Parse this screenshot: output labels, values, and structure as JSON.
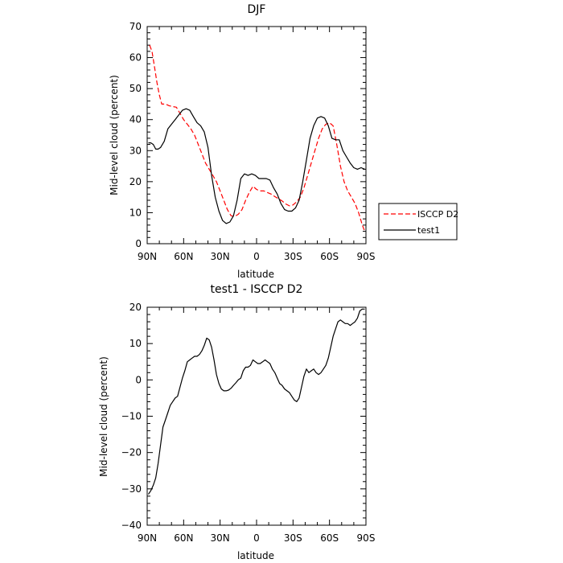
{
  "chart_data": [
    {
      "type": "line",
      "title": "DJF",
      "xlabel": "latitude",
      "ylabel": "Mid-level cloud (percent)",
      "xlim": [
        90,
        -90
      ],
      "ylim": [
        0,
        70
      ],
      "x_ticks": [
        90,
        60,
        30,
        0,
        -30,
        -60,
        -90
      ],
      "x_tick_labels": [
        "90N",
        "60N",
        "30N",
        "0",
        "30S",
        "60S",
        "90S"
      ],
      "y_ticks": [
        0,
        10,
        20,
        30,
        40,
        50,
        60,
        70
      ],
      "y_tick_labels": [
        "0",
        "10",
        "20",
        "30",
        "40",
        "50",
        "60",
        "70"
      ],
      "grid": false,
      "legend_position": "right-bottom, outside plot",
      "series": [
        {
          "name": "ISCCP D2",
          "color": "#ff0000",
          "dash": "dashed",
          "x": [
            88,
            86,
            84,
            82,
            80,
            78,
            75,
            72,
            69,
            66,
            63,
            60,
            57,
            54,
            51,
            48,
            45,
            42,
            39,
            36,
            33,
            30,
            27,
            24,
            21,
            18,
            15,
            12,
            9,
            6,
            3,
            0,
            -3,
            -6,
            -9,
            -12,
            -15,
            -18,
            -21,
            -24,
            -27,
            -30,
            -33,
            -36,
            -39,
            -42,
            -45,
            -48,
            -51,
            -54,
            -57,
            -60,
            -63,
            -66,
            -69,
            -72,
            -75,
            -78,
            -81,
            -84,
            -87,
            -89
          ],
          "y": [
            64,
            62,
            57,
            52,
            48,
            45,
            45,
            44.5,
            44.2,
            44,
            42,
            40,
            38.5,
            37,
            35,
            32,
            29,
            26,
            24,
            22,
            20,
            17,
            14,
            11,
            9,
            8.8,
            9.5,
            11,
            14,
            16.5,
            18.5,
            17.5,
            17,
            17,
            16.5,
            16,
            15.2,
            14.5,
            13.8,
            12.8,
            12.2,
            12.5,
            13.5,
            15,
            18,
            22,
            26,
            30,
            34,
            37,
            38.5,
            39,
            38,
            32,
            25,
            20,
            17,
            15,
            13,
            10,
            6,
            4
          ]
        },
        {
          "name": "test1",
          "color": "#000000",
          "dash": "solid",
          "x": [
            89,
            87,
            85,
            83,
            81,
            79,
            76,
            73,
            70,
            67,
            64,
            61,
            58,
            55,
            52,
            49,
            46,
            43,
            40,
            37,
            34,
            31,
            28,
            25,
            22,
            19,
            16,
            13,
            10,
            7,
            4,
            1,
            -2,
            -5,
            -8,
            -11,
            -14,
            -17,
            -20,
            -23,
            -26,
            -29,
            -32,
            -35,
            -38,
            -41,
            -44,
            -47,
            -50,
            -53,
            -56,
            -59,
            -62,
            -65,
            -68,
            -71,
            -74,
            -77,
            -80,
            -83,
            -86,
            -89
          ],
          "y": [
            32.5,
            32.5,
            32,
            30.5,
            30.5,
            31,
            33,
            37,
            38.5,
            40,
            41.5,
            43,
            43.5,
            43,
            41,
            39,
            38,
            36,
            31,
            22,
            15,
            10.5,
            7.5,
            6.5,
            7,
            9,
            14,
            21,
            22.5,
            22,
            22.5,
            22,
            21,
            21,
            21,
            20.5,
            18,
            16,
            13,
            11,
            10.5,
            10.5,
            11.5,
            14,
            20,
            27,
            34,
            38,
            40.5,
            41,
            40.5,
            38,
            34,
            33.5,
            33.5,
            30,
            28,
            26,
            24.5,
            24,
            24.5,
            24
          ]
        }
      ]
    },
    {
      "type": "line",
      "title": "test1 - ISCCP D2",
      "xlabel": "latitude",
      "ylabel": "Mid-level cloud (percent)",
      "xlim": [
        90,
        -90
      ],
      "ylim": [
        -40,
        20
      ],
      "x_ticks": [
        90,
        60,
        30,
        0,
        -30,
        -60,
        -90
      ],
      "x_tick_labels": [
        "90N",
        "60N",
        "30N",
        "0",
        "30S",
        "60S",
        "90S"
      ],
      "y_ticks": [
        -40,
        -30,
        -20,
        -10,
        0,
        10,
        20
      ],
      "y_tick_labels": [
        "−40",
        "−30",
        "−20",
        "−10",
        "0",
        "10",
        "20"
      ],
      "grid": false,
      "series": [
        {
          "color": "#000000",
          "dash": "solid",
          "x": [
            89,
            87,
            85,
            83,
            81,
            79,
            77,
            75,
            73,
            71,
            69,
            67,
            65,
            63,
            61,
            59,
            57,
            55,
            53,
            51,
            49,
            47,
            45,
            43,
            41,
            39,
            37,
            35,
            33,
            31,
            29,
            27,
            25,
            23,
            21,
            19,
            17,
            15,
            13,
            11,
            9,
            7,
            5,
            3,
            1,
            -1,
            -3,
            -5,
            -7,
            -9,
            -11,
            -13,
            -15,
            -17,
            -19,
            -21,
            -23,
            -25,
            -27,
            -29,
            -31,
            -33,
            -35,
            -37,
            -39,
            -41,
            -43,
            -45,
            -47,
            -49,
            -51,
            -53,
            -55,
            -57,
            -59,
            -61,
            -63,
            -65,
            -67,
            -69,
            -71,
            -73,
            -75,
            -77,
            -79,
            -81,
            -83,
            -85,
            -87,
            -89
          ],
          "y": [
            -31.5,
            -30.5,
            -29,
            -27,
            -23,
            -18,
            -13,
            -11,
            -9,
            -7,
            -6,
            -5,
            -4.5,
            -2,
            0.5,
            2.5,
            5,
            5.5,
            6,
            6.5,
            6.5,
            7,
            8,
            9.5,
            11.5,
            11,
            9,
            5.5,
            1.5,
            -1,
            -2.5,
            -3,
            -3,
            -2.8,
            -2.3,
            -1.5,
            -0.8,
            0,
            0.5,
            2.5,
            3.5,
            3.5,
            4,
            5.5,
            5,
            4.5,
            4.5,
            5,
            5.5,
            5,
            4.5,
            3,
            2,
            0.5,
            -1,
            -1.5,
            -2.5,
            -3,
            -3.5,
            -4.5,
            -5.5,
            -6,
            -5,
            -2,
            1,
            3,
            2,
            2.5,
            3,
            2,
            1.5,
            2,
            3,
            4,
            6,
            9,
            12,
            14,
            16,
            16.5,
            16,
            15.5,
            15.5,
            15,
            15.5,
            16,
            17,
            19,
            19.5,
            19.5
          ]
        }
      ]
    }
  ]
}
